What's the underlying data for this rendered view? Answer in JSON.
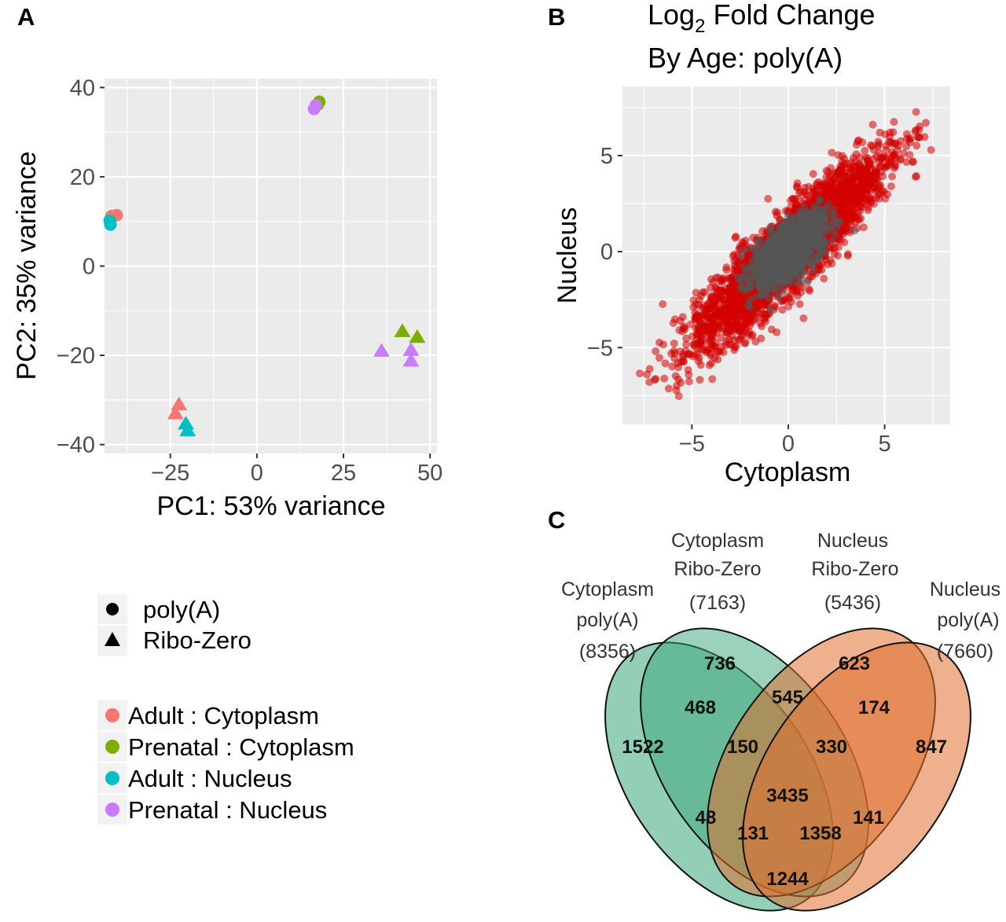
{
  "panels": {
    "a": {
      "letter": "A"
    },
    "b": {
      "letter": "B",
      "title_line1_main": "Log",
      "title_line1_sub": "2",
      "title_line1_rest": " Fold Change",
      "title_line2": "By Age: poly(A)"
    },
    "c": {
      "letter": "C"
    }
  },
  "colors": {
    "panel_bg": "#ebebeb",
    "grid": "#ffffff",
    "adult_cytoplasm": "#f8766d",
    "prenatal_cytoplasm": "#7cae00",
    "adult_nucleus": "#00bfc4",
    "prenatal_nucleus": "#c77cff",
    "sig_point": "#d40000",
    "nonsig_point": "#555555",
    "venn_green": "#3aa57a",
    "venn_orange": "#e07030"
  },
  "chart_data": [
    {
      "id": "pca",
      "type": "scatter",
      "xlabel": "PC1: 53% variance",
      "ylabel": "PC2: 35% variance",
      "xlim": [
        -44,
        52
      ],
      "ylim": [
        -42,
        42
      ],
      "xticks": [
        -25,
        0,
        25,
        50
      ],
      "xtick_labels": [
        "−25",
        "0",
        "25",
        "50"
      ],
      "yticks": [
        -40,
        -20,
        0,
        20,
        40
      ],
      "ytick_labels": [
        "−40",
        "−20",
        "0",
        "20",
        "40"
      ],
      "grid": true,
      "legend_shape": {
        "items": [
          {
            "label": "poly(A)",
            "shape": "circle"
          },
          {
            "label": "Ribo-Zero",
            "shape": "triangle"
          }
        ]
      },
      "legend_group": {
        "items": [
          {
            "label": "Adult : Cytoplasm",
            "color_key": "adult_cytoplasm"
          },
          {
            "label": "Prenatal : Cytoplasm",
            "color_key": "prenatal_cytoplasm"
          },
          {
            "label": "Adult : Nucleus",
            "color_key": "adult_nucleus"
          },
          {
            "label": "Prenatal : Nucleus",
            "color_key": "prenatal_nucleus"
          }
        ]
      },
      "points": [
        {
          "x": -42,
          "y": 11.2,
          "group": "adult_cytoplasm",
          "shape": "circle"
        },
        {
          "x": -40.5,
          "y": 11.4,
          "group": "adult_cytoplasm",
          "shape": "circle"
        },
        {
          "x": -42.5,
          "y": 10.2,
          "group": "adult_nucleus",
          "shape": "circle"
        },
        {
          "x": -42.3,
          "y": 9.3,
          "group": "adult_nucleus",
          "shape": "circle"
        },
        {
          "x": 18,
          "y": 36.8,
          "group": "prenatal_cytoplasm",
          "shape": "circle"
        },
        {
          "x": 17.6,
          "y": 36.2,
          "group": "prenatal_cytoplasm",
          "shape": "circle"
        },
        {
          "x": 16.5,
          "y": 35.2,
          "group": "prenatal_nucleus",
          "shape": "circle"
        },
        {
          "x": 17,
          "y": 36,
          "group": "prenatal_nucleus",
          "shape": "circle"
        },
        {
          "x": -22.5,
          "y": -31,
          "group": "adult_cytoplasm",
          "shape": "triangle"
        },
        {
          "x": -23.5,
          "y": -33,
          "group": "adult_cytoplasm",
          "shape": "triangle"
        },
        {
          "x": -20.5,
          "y": -35.3,
          "group": "adult_nucleus",
          "shape": "triangle"
        },
        {
          "x": -20,
          "y": -36.8,
          "group": "adult_nucleus",
          "shape": "triangle"
        },
        {
          "x": 42,
          "y": -14.6,
          "group": "prenatal_cytoplasm",
          "shape": "triangle"
        },
        {
          "x": 46.3,
          "y": -15.9,
          "group": "prenatal_cytoplasm",
          "shape": "triangle"
        },
        {
          "x": 36,
          "y": -19,
          "group": "prenatal_nucleus",
          "shape": "triangle"
        },
        {
          "x": 44.5,
          "y": -18.8,
          "group": "prenatal_nucleus",
          "shape": "triangle"
        },
        {
          "x": 44.5,
          "y": -21.2,
          "group": "prenatal_nucleus",
          "shape": "triangle"
        }
      ]
    },
    {
      "id": "lfc",
      "type": "scatter",
      "title": "Log2 Fold Change By Age: poly(A)",
      "xlabel": "Cytoplasm",
      "ylabel": "Nucleus",
      "xlim": [
        -8.6,
        8.4
      ],
      "ylim": [
        -9.0,
        8.6
      ],
      "xticks": [
        -5,
        0,
        5
      ],
      "xtick_labels": [
        "−5",
        "0",
        "5"
      ],
      "yticks": [
        -5,
        0,
        5
      ],
      "ytick_labels": [
        "−5",
        "0",
        "5"
      ],
      "grid": true,
      "clouds": [
        {
          "label": "significant",
          "color_key": "sig_point",
          "n": 3200,
          "center": [
            0,
            0
          ],
          "major_sd": 3.3,
          "minor_sd": 0.75,
          "angle_deg": 45,
          "clip": [
            -8.0,
            7.7
          ]
        },
        {
          "label": "not significant",
          "color_key": "nonsig_point",
          "n": 1100,
          "center": [
            0,
            0
          ],
          "major_sd": 1.25,
          "minor_sd": 0.55,
          "angle_deg": 45,
          "clip": [
            -3.5,
            3.5
          ]
        }
      ]
    },
    {
      "id": "venn",
      "type": "venn",
      "sets": [
        {
          "line1": "Cytoplasm",
          "line2": "poly(A)",
          "count": "(8356)"
        },
        {
          "line1": "Cytoplasm",
          "line2": "Ribo-Zero",
          "count": "(7163)"
        },
        {
          "line1": "Nucleus",
          "line2": "Ribo-Zero",
          "count": "(5436)"
        },
        {
          "line1": "Nucleus",
          "line2": "poly(A)",
          "count": "(7660)"
        }
      ],
      "regions": [
        {
          "value": "736",
          "sets": [
            "cyto_ribo"
          ]
        },
        {
          "value": "623",
          "sets": [
            "nuc_ribo"
          ]
        },
        {
          "value": "468",
          "sets": [
            "cyto_polya",
            "cyto_ribo"
          ]
        },
        {
          "value": "545",
          "sets": [
            "cyto_ribo",
            "nuc_ribo"
          ]
        },
        {
          "value": "174",
          "sets": [
            "nuc_ribo",
            "nuc_polya"
          ]
        },
        {
          "value": "1522",
          "sets": [
            "cyto_polya"
          ]
        },
        {
          "value": "150",
          "sets": [
            "cyto_polya",
            "cyto_ribo",
            "nuc_ribo"
          ]
        },
        {
          "value": "330",
          "sets": [
            "cyto_ribo",
            "nuc_ribo",
            "nuc_polya"
          ]
        },
        {
          "value": "847",
          "sets": [
            "nuc_polya"
          ]
        },
        {
          "value": "3435",
          "sets": [
            "cyto_polya",
            "cyto_ribo",
            "nuc_ribo",
            "nuc_polya"
          ]
        },
        {
          "value": "48",
          "sets": [
            "cyto_polya",
            "nuc_ribo"
          ]
        },
        {
          "value": "141",
          "sets": [
            "cyto_ribo",
            "nuc_polya"
          ]
        },
        {
          "value": "131",
          "sets": [
            "cyto_polya",
            "nuc_ribo",
            "nuc_polya"
          ]
        },
        {
          "value": "1358",
          "sets": [
            "cyto_polya",
            "cyto_ribo",
            "nuc_polya"
          ]
        },
        {
          "value": "1244",
          "sets": [
            "cyto_polya",
            "nuc_polya"
          ]
        }
      ]
    }
  ]
}
